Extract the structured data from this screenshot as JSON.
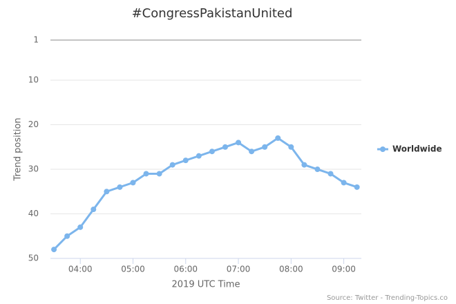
{
  "chart_data": {
    "type": "line",
    "title": "#CongressPakistanUnited",
    "x_label": "2019 UTC Time",
    "y_label": "Trend position",
    "source": "Source: Twitter - Trending-Topics.co",
    "x": [
      "03:30",
      "03:45",
      "04:00",
      "04:15",
      "04:30",
      "04:45",
      "05:00",
      "05:15",
      "05:30",
      "05:45",
      "06:00",
      "06:15",
      "06:30",
      "06:45",
      "07:00",
      "07:15",
      "07:30",
      "07:45",
      "08:00",
      "08:15",
      "08:30",
      "08:45",
      "09:00",
      "09:15"
    ],
    "series": [
      {
        "name": "Worldwide",
        "color": "#7cb5ec",
        "values": [
          48,
          45,
          43,
          39,
          35,
          34,
          33,
          31,
          31,
          29,
          28,
          27,
          26,
          25,
          24,
          26,
          25,
          23,
          25,
          29,
          30,
          31,
          33,
          34
        ]
      }
    ],
    "xlim": [
      "03:26",
      "09:20"
    ],
    "xticks": [
      "04:00",
      "05:00",
      "06:00",
      "07:00",
      "08:00",
      "09:00"
    ],
    "ylim": [
      50,
      1
    ],
    "yticks": [
      1,
      10,
      20,
      30,
      40,
      50
    ],
    "grid": true,
    "legend": "right"
  }
}
